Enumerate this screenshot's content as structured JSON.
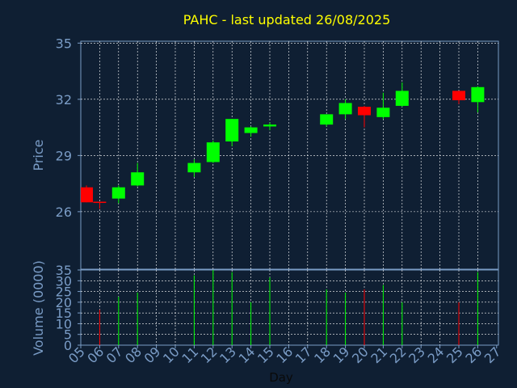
{
  "chart_data": {
    "type": "candlestick",
    "title": "PAHC - last updated 26/08/2025",
    "colors": {
      "background": "#0f1f33",
      "axis": "#7a9cc6",
      "tick_label": "#7a9cc6",
      "title": "#ffff00",
      "xlabel": "#0a0a0a",
      "up": "#00ff00",
      "down": "#ff0000",
      "grid": "#ffffff"
    },
    "grid": true,
    "price_panel": {
      "ylabel": "Price",
      "ylim": [
        22.93,
        35.1
      ],
      "yticks": [
        "26",
        "29",
        "32",
        "35"
      ]
    },
    "volume_panel": {
      "ylabel": "Volume (0000)",
      "ylim": [
        0,
        35
      ],
      "yticks": [
        "0",
        "5",
        "10",
        "15",
        "20",
        "25",
        "30",
        "35"
      ]
    },
    "x_axis": {
      "xlabel": "Day",
      "ticks": [
        "05",
        "06",
        "07",
        "08",
        "09",
        "10",
        "11",
        "12",
        "13",
        "14",
        "15",
        "16",
        "17",
        "18",
        "19",
        "20",
        "21",
        "22",
        "23",
        "24",
        "25",
        "26",
        "27"
      ]
    },
    "candles": [
      {
        "day": 5.3,
        "open": 27.3,
        "high": 27.4,
        "low": 26.5,
        "close": 26.5,
        "volume": 0
      },
      {
        "day": 6.0,
        "open": 26.5,
        "high": 26.5,
        "low": 26.15,
        "close": 26.45,
        "volume": 16.5
      },
      {
        "day": 7.0,
        "open": 26.7,
        "high": 27.4,
        "low": 26.45,
        "close": 27.3,
        "volume": 22.5
      },
      {
        "day": 8.0,
        "open": 27.4,
        "high": 28.6,
        "low": 27.35,
        "close": 28.1,
        "volume": 24.5
      },
      {
        "day": 11.0,
        "open": 28.1,
        "high": 28.8,
        "low": 27.85,
        "close": 28.6,
        "volume": 32.5
      },
      {
        "day": 12.0,
        "open": 28.65,
        "high": 29.8,
        "low": 28.6,
        "close": 29.7,
        "volume": 35.0
      },
      {
        "day": 13.0,
        "open": 29.75,
        "high": 30.95,
        "low": 29.5,
        "close": 30.95,
        "volume": 34.0
      },
      {
        "day": 14.0,
        "open": 30.2,
        "high": 30.55,
        "low": 30.0,
        "close": 30.5,
        "volume": 20.0
      },
      {
        "day": 15.0,
        "open": 30.55,
        "high": 30.75,
        "low": 30.35,
        "close": 30.65,
        "volume": 31.5
      },
      {
        "day": 18.0,
        "open": 30.65,
        "high": 31.15,
        "low": 30.55,
        "close": 31.2,
        "volume": 26.0
      },
      {
        "day": 19.0,
        "open": 31.2,
        "high": 32.0,
        "low": 30.95,
        "close": 31.8,
        "volume": 24.5
      },
      {
        "day": 20.0,
        "open": 31.6,
        "high": 31.65,
        "low": 30.5,
        "close": 31.15,
        "volume": 26.0
      },
      {
        "day": 21.0,
        "open": 31.05,
        "high": 32.35,
        "low": 30.95,
        "close": 31.55,
        "volume": 28.0
      },
      {
        "day": 22.0,
        "open": 31.65,
        "high": 32.9,
        "low": 31.6,
        "close": 32.45,
        "volume": 20.0
      },
      {
        "day": 25.0,
        "open": 32.45,
        "high": 32.45,
        "low": 31.75,
        "close": 31.95,
        "volume": 20.0
      },
      {
        "day": 26.0,
        "open": 31.85,
        "high": 32.7,
        "low": 31.3,
        "close": 32.65,
        "volume": 34.0
      }
    ]
  }
}
